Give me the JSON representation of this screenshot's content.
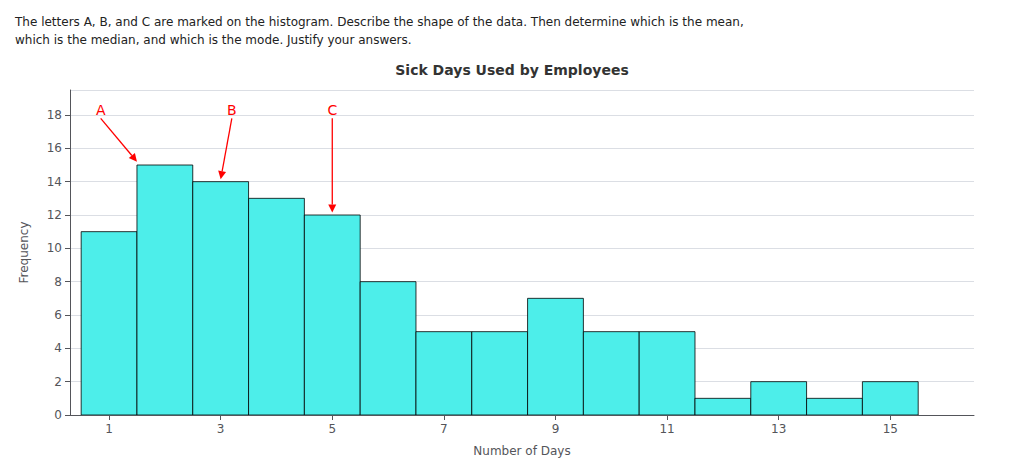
{
  "chart_data": {
    "type": "bar",
    "title": "Sick Days Used by Employees",
    "subtitle": [
      "The letters A, B, and C are marked on the histogram. Describe the shape of the data. Then determine which is the mean,",
      "which is the median, and which is the mode. Justify your answers."
    ],
    "x_label": "Number of Days",
    "y_label": "Frequency",
    "x": [
      1,
      2,
      3,
      4,
      5,
      6,
      7,
      8,
      9,
      10,
      11,
      12,
      13,
      14,
      15
    ],
    "values": [
      11,
      15,
      14,
      13,
      12,
      8,
      5,
      5,
      7,
      5,
      5,
      1,
      2,
      1,
      2
    ],
    "color": "#4DEEEA",
    "xlim": [
      0.3,
      16.5
    ],
    "xticks": [
      1,
      3,
      5,
      7,
      9,
      11,
      13,
      15
    ],
    "ylim": [
      0,
      19.5
    ],
    "yticks": [
      0,
      2,
      4,
      6,
      8,
      10,
      12,
      14,
      16,
      18
    ],
    "grid": true,
    "annotations": [
      {
        "text": "A",
        "text_x": 0.85,
        "text_y": 17.8,
        "x": 1.5,
        "y": 15.2,
        "color": "#FF0000"
      },
      {
        "text": "B",
        "text_x": 3.2,
        "text_y": 17.8,
        "x": 3.0,
        "y": 14.15,
        "color": "#FF0000"
      },
      {
        "text": "C",
        "text_x": 5.0,
        "text_y": 17.8,
        "x": 5.0,
        "y": 12.15,
        "color": "#FF0000"
      }
    ]
  }
}
